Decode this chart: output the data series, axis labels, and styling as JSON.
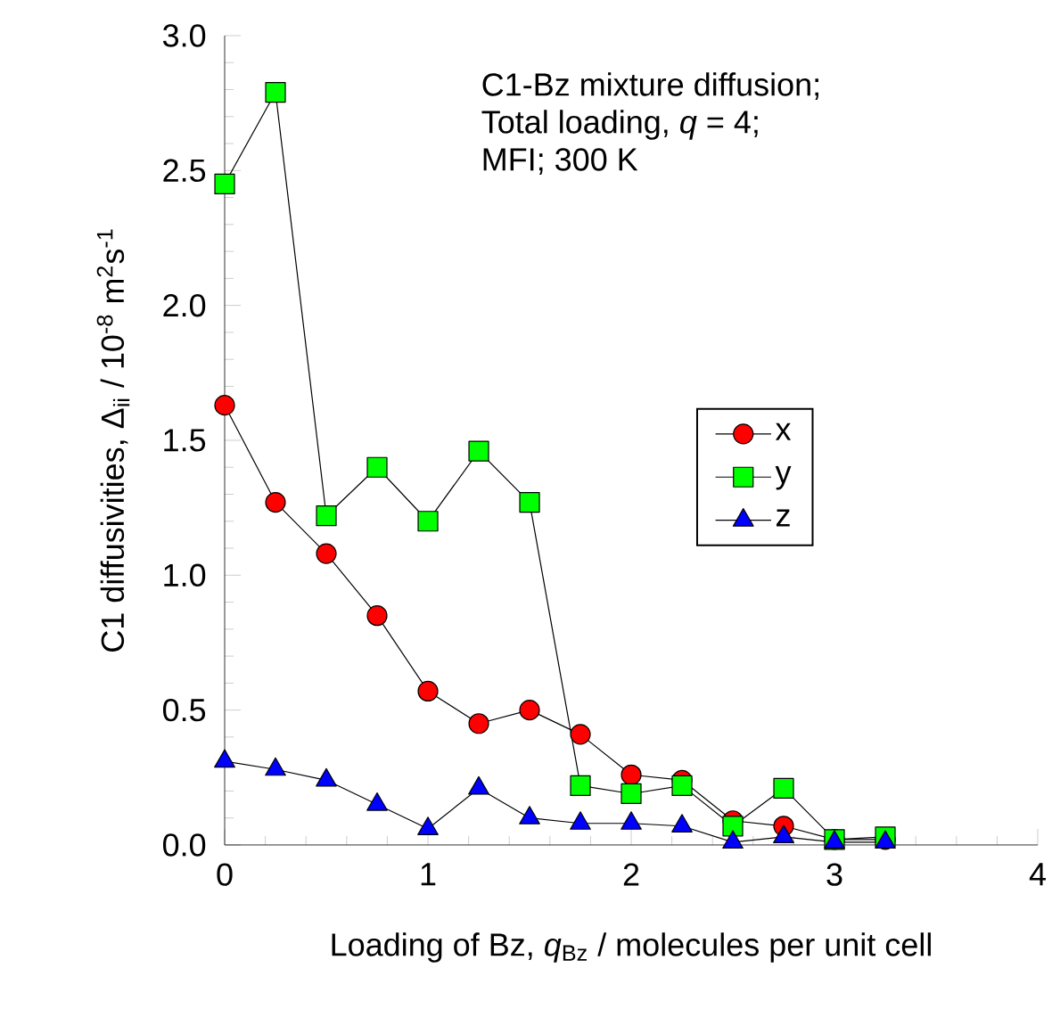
{
  "chart_data": {
    "type": "line",
    "xlabel": "Loading of Bz, *q*$_{Bz}$ / molecules per unit cell",
    "ylabel": "C1 diffusivities, Δ$_{ii}$ / 10$^{-8}$ m$^{2}$s$^{-1}$",
    "annotations": [
      "C1-Bz mixture diffusion;",
      "Total loading, *q* = 4;",
      "MFI; 300 K"
    ],
    "x": [
      0,
      0.25,
      0.5,
      0.75,
      1,
      1.25,
      1.5,
      1.75,
      2,
      2.25,
      2.5,
      2.75,
      3,
      3.25
    ],
    "series": [
      {
        "name": "x",
        "color": "#ff0000",
        "marker": "circle",
        "values": [
          1.63,
          1.27,
          1.08,
          0.85,
          0.57,
          0.45,
          0.5,
          0.41,
          0.26,
          0.24,
          0.09,
          0.07,
          0.02,
          0.02
        ]
      },
      {
        "name": "y",
        "color": "#00ff00",
        "marker": "square",
        "values": [
          2.45,
          2.79,
          1.22,
          1.4,
          1.2,
          1.46,
          1.27,
          0.22,
          0.19,
          0.22,
          0.07,
          0.21,
          0.02,
          0.03
        ]
      },
      {
        "name": "z",
        "color": "#0000ff",
        "marker": "triangle",
        "values": [
          0.31,
          0.28,
          0.24,
          0.15,
          0.06,
          0.21,
          0.1,
          0.08,
          0.08,
          0.07,
          0.01,
          0.03,
          0.01,
          0.01
        ]
      }
    ],
    "xlim": [
      0,
      4
    ],
    "ylim": [
      0,
      3
    ],
    "xticks": [
      0,
      1,
      2,
      3,
      4
    ],
    "yticks": [
      {
        "value": 0,
        "label": "0.0"
      },
      {
        "value": 0.5,
        "label": "0.5"
      },
      {
        "value": 1,
        "label": "1.0"
      },
      {
        "value": 1.5,
        "label": "1.5"
      },
      {
        "value": 2,
        "label": "2.0"
      },
      {
        "value": 2.5,
        "label": "2.5"
      },
      {
        "value": 3,
        "label": "3.0"
      }
    ],
    "grid": false,
    "legend": "right"
  }
}
